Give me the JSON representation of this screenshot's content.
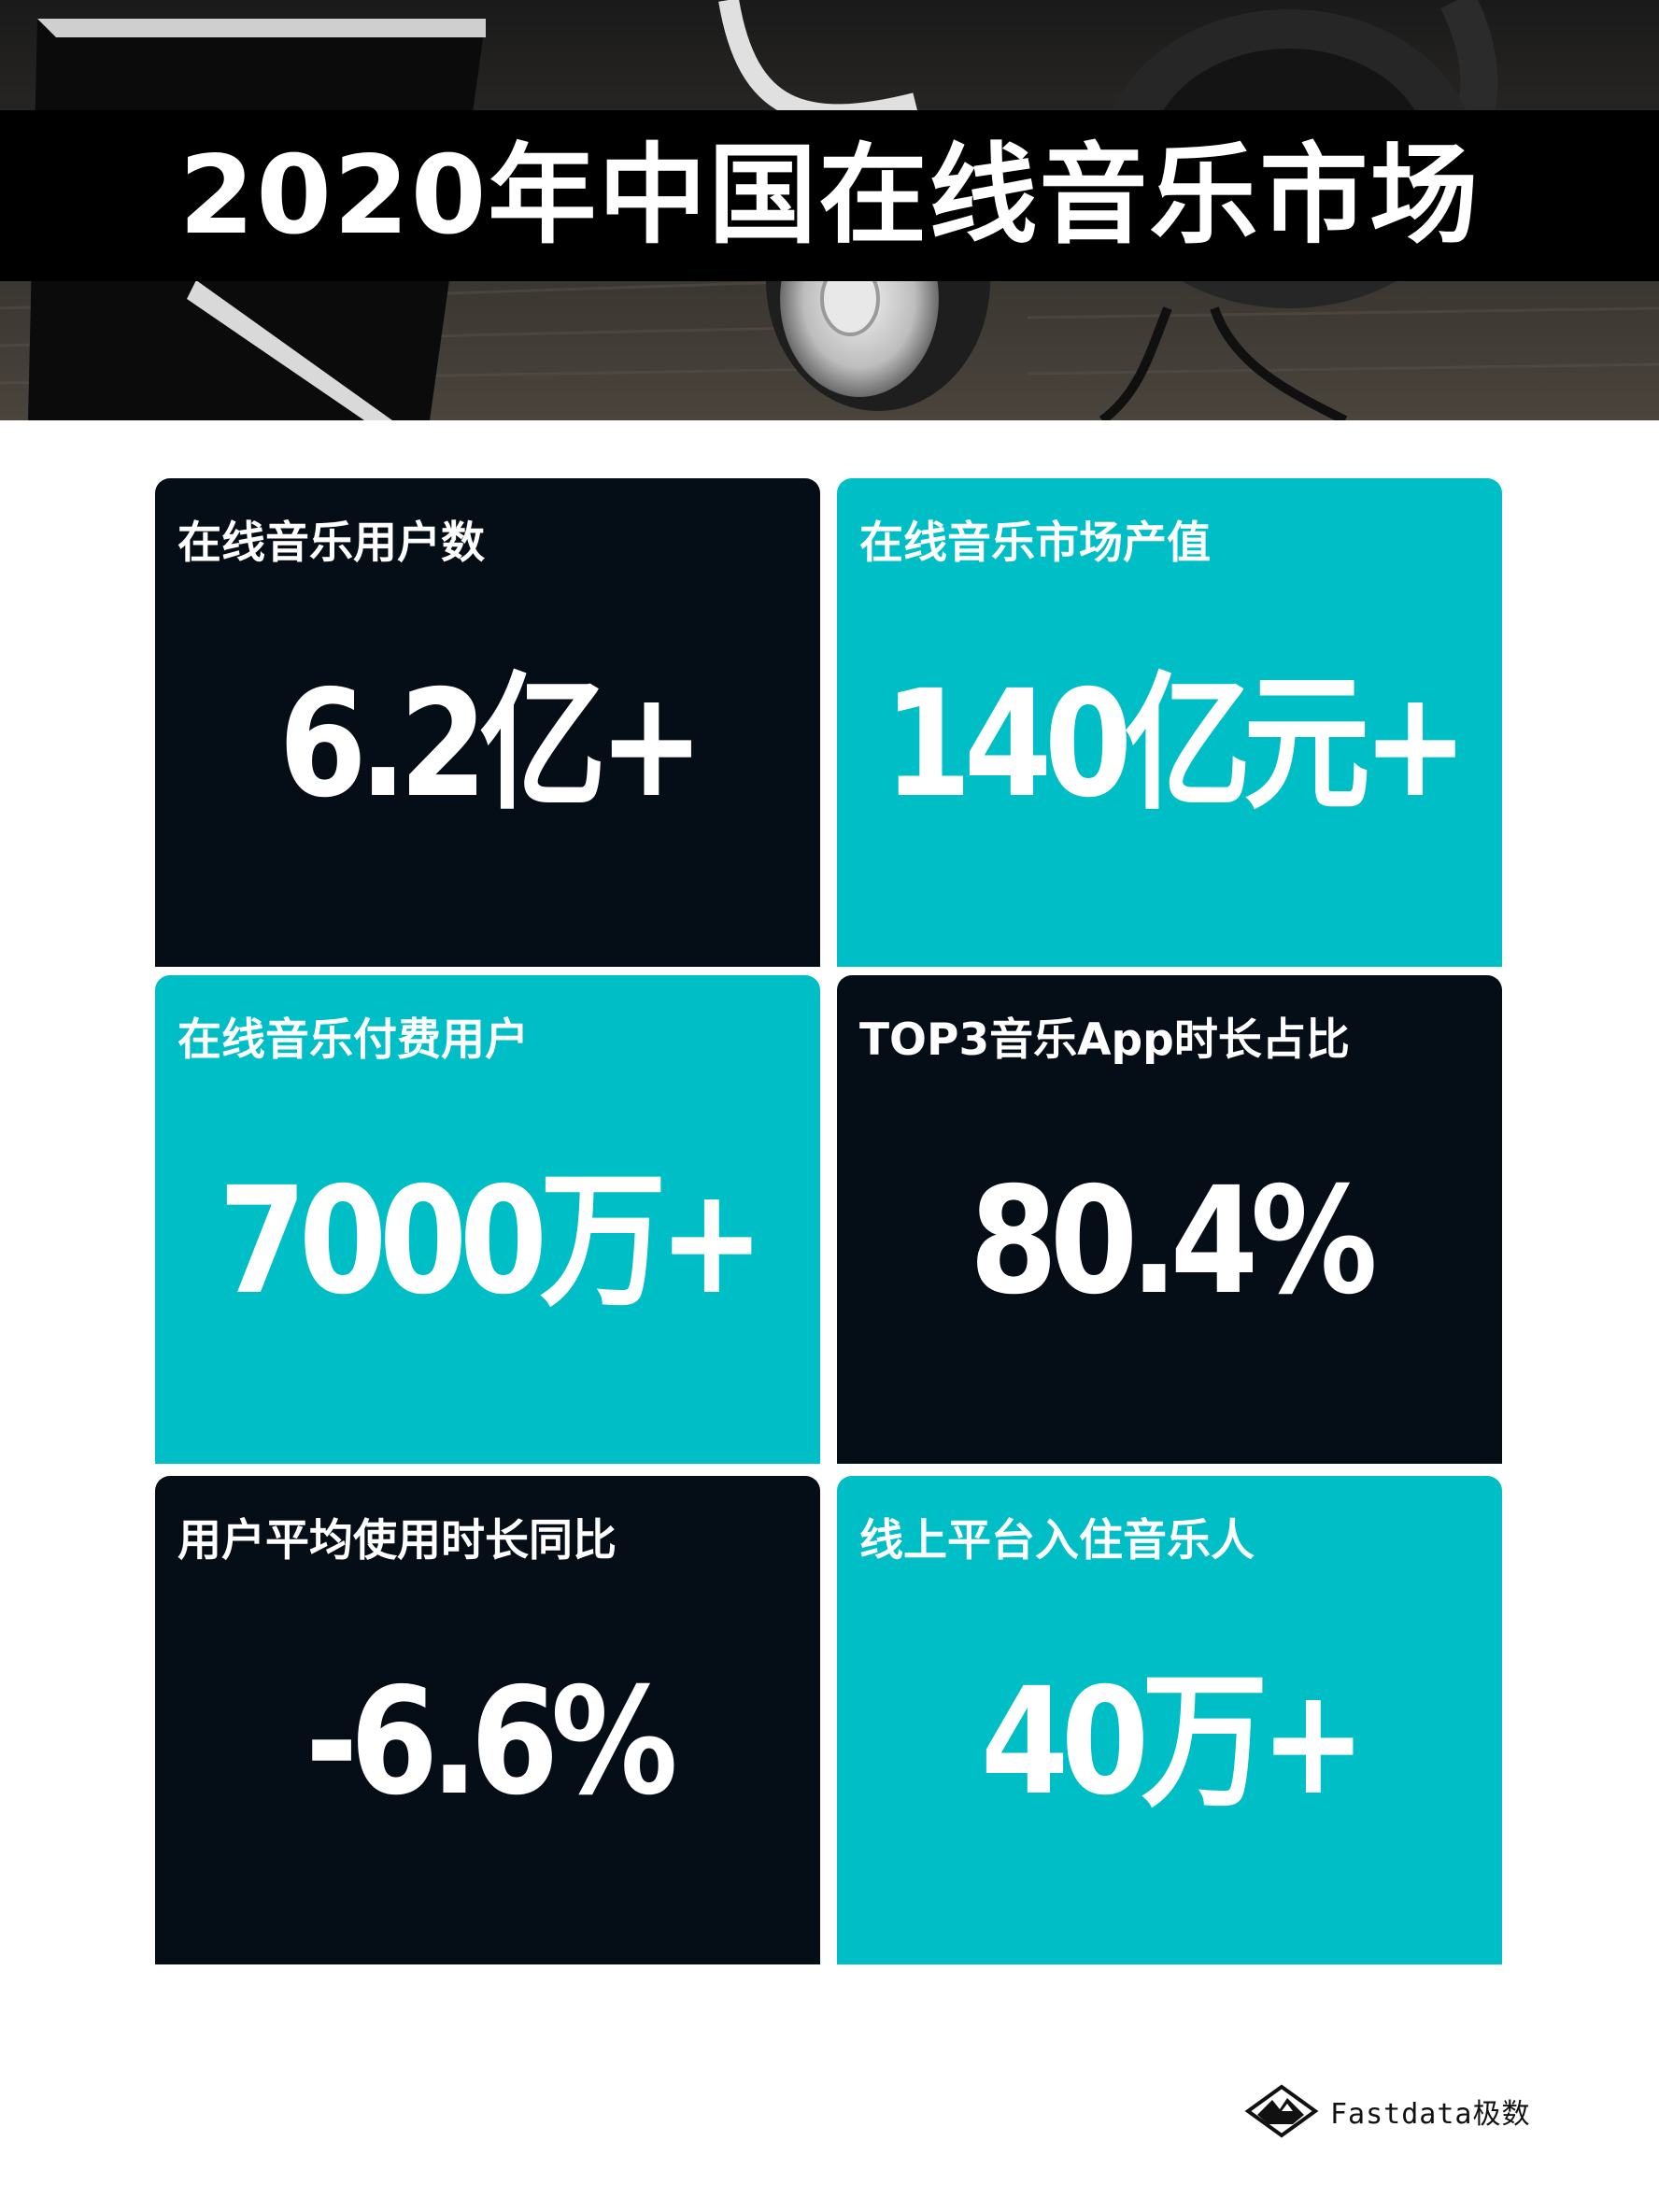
{
  "title": "2020年中国在线音乐市场",
  "stats": [
    {
      "label": "在线音乐用户数",
      "value": "6.2亿+"
    },
    {
      "label": "在线音乐市场产值",
      "value": "140亿元+"
    },
    {
      "label": "在线音乐付费用户",
      "value": "7000万+"
    },
    {
      "label": "TOP3音乐App时长占比",
      "value": "80.4%"
    },
    {
      "label": "用户平均使用时长同比",
      "value": "-6.6%"
    },
    {
      "label": "线上平台入住音乐人",
      "value": "40万+"
    }
  ],
  "footer": {
    "logo_text": "Fastdata极数",
    "logo_icon": "mountain-logo-icon"
  },
  "colors": {
    "dark_card": "#050d17",
    "teal_card": "#00bec6",
    "title_band": "#000000",
    "text": "#ffffff"
  }
}
